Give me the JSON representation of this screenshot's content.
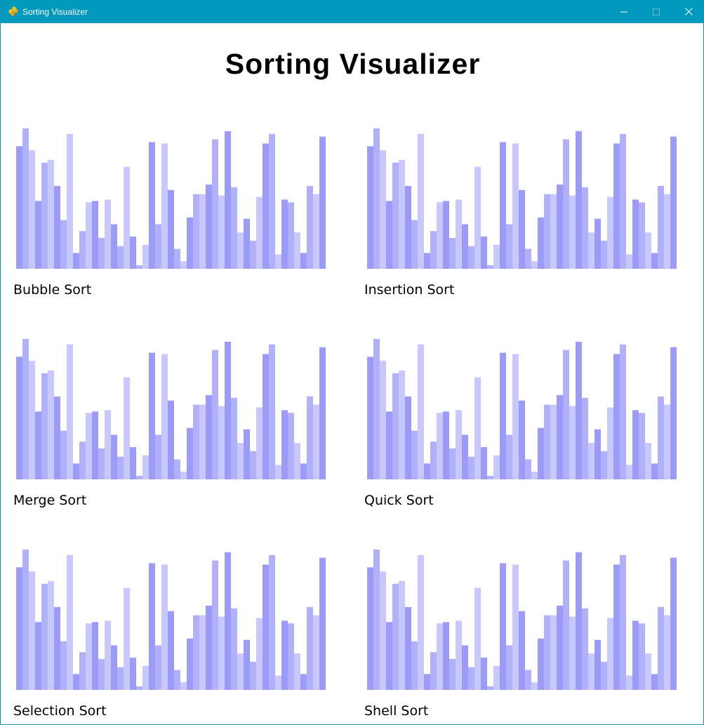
{
  "window": {
    "title": "Sorting Visualizer",
    "controls": {
      "minimize": "minimize-icon",
      "maximize": "maximize-icon",
      "close": "close-icon"
    }
  },
  "heading": "Sorting Visualizer",
  "colors": {
    "titlebar": "#0099bc",
    "bar_palette": [
      "#9c9cf8",
      "#b0b0fb",
      "#c8c8fd"
    ]
  },
  "panels": [
    {
      "label": "Bubble Sort"
    },
    {
      "label": "Insertion Sort"
    },
    {
      "label": "Merge Sort"
    },
    {
      "label": "Quick Sort"
    },
    {
      "label": "Selection Sort"
    },
    {
      "label": "Shell Sort"
    }
  ],
  "chart_data": {
    "type": "bar",
    "note_shared": "same dataset shown in all six panels",
    "values": [
      87,
      100,
      84,
      47,
      75,
      77,
      58,
      33,
      96,
      9,
      25,
      46,
      47,
      20,
      48,
      30,
      14,
      72,
      21,
      0,
      15,
      90,
      30,
      89,
      55,
      12,
      3,
      35,
      52,
      52,
      59,
      92,
      51,
      98,
      57,
      24,
      34,
      18,
      50,
      89,
      96,
      8,
      48,
      46,
      24,
      9,
      58,
      52,
      94
    ]
  }
}
